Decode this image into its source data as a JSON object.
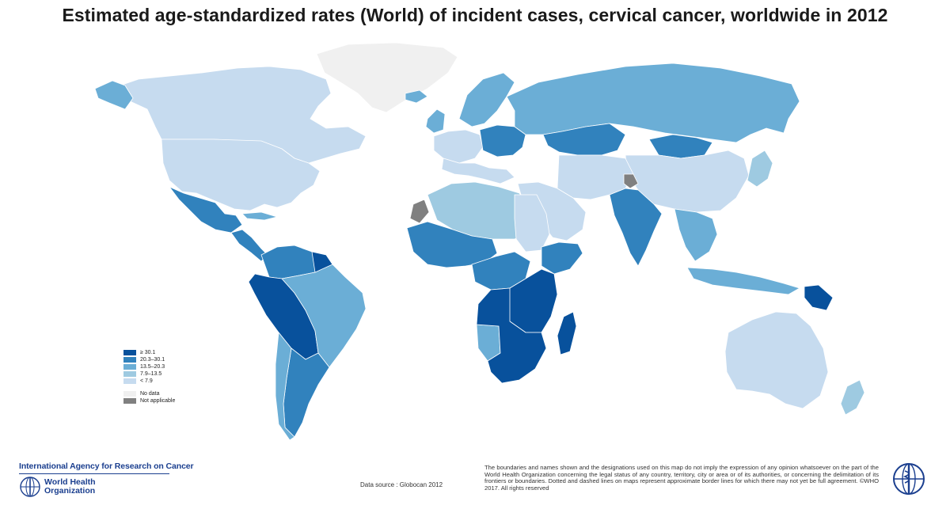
{
  "title": "Estimated age-standardized rates (World) of incident cases, cervical cancer, worldwide in 2012",
  "legend": {
    "classes": [
      {
        "label": "≥ 30.1",
        "color": "#08519c"
      },
      {
        "label": "20.3–30.1",
        "color": "#3182bd"
      },
      {
        "label": "13.5–20.3",
        "color": "#6baed6"
      },
      {
        "label": "7.9–13.5",
        "color": "#9ecae1"
      },
      {
        "label": "< 7.9",
        "color": "#c6dbef"
      }
    ],
    "no_data": {
      "label": "No data",
      "color": "#f0f0f0"
    },
    "not_applicable": {
      "label": "Not applicable",
      "color": "#808080"
    }
  },
  "footer": {
    "iarc": "International Agency for Research on Cancer",
    "who_line1": "World Health",
    "who_line2": "Organization",
    "source": "Data source : Globocan 2012",
    "disclaimer": "The boundaries and names shown and the designations used on this map do not imply the expression of any opinion whatsoever on the part of the World Health Organization concerning the legal status of any country, territory, city or area or of its authorities, or concerning the delimitation of its frontiers or boundaries. Dotted and dashed lines on maps represent approximate border lines for which there may not yet be full agreement. ©WHO 2017. All rights reserved"
  },
  "regions": [
    {
      "name": "greenland",
      "class": "no_data"
    },
    {
      "name": "canada",
      "class": 4
    },
    {
      "name": "alaska",
      "class": 2
    },
    {
      "name": "usa",
      "class": 4
    },
    {
      "name": "mexico",
      "class": 1
    },
    {
      "name": "central-america",
      "class": 1
    },
    {
      "name": "cuba",
      "class": 2
    },
    {
      "name": "colombia-venezuela",
      "class": 1
    },
    {
      "name": "guianas",
      "class": 0
    },
    {
      "name": "peru-bolivia-paraguay",
      "class": 0
    },
    {
      "name": "brazil",
      "class": 2
    },
    {
      "name": "chile",
      "class": 2
    },
    {
      "name": "argentina",
      "class": 1
    },
    {
      "name": "iceland",
      "class": 2
    },
    {
      "name": "uk-ireland",
      "class": 2
    },
    {
      "name": "scandinavia",
      "class": 2
    },
    {
      "name": "western-europe",
      "class": 4
    },
    {
      "name": "central-eastern-europe",
      "class": 1
    },
    {
      "name": "southern-europe",
      "class": 4
    },
    {
      "name": "russia",
      "class": 2
    },
    {
      "name": "kazakhstan",
      "class": 1
    },
    {
      "name": "mongolia",
      "class": 1
    },
    {
      "name": "china",
      "class": 4
    },
    {
      "name": "japan-korea",
      "class": 3
    },
    {
      "name": "middle-east",
      "class": 4
    },
    {
      "name": "iran-central-asia",
      "class": 4
    },
    {
      "name": "india",
      "class": 1
    },
    {
      "name": "kashmir",
      "class": "not_applicable"
    },
    {
      "name": "southeast-asia",
      "class": 2
    },
    {
      "name": "indonesia",
      "class": 2
    },
    {
      "name": "papua-new-guinea",
      "class": 0
    },
    {
      "name": "australia",
      "class": 4
    },
    {
      "name": "new-zealand",
      "class": 3
    },
    {
      "name": "western-sahara",
      "class": "not_applicable"
    },
    {
      "name": "north-africa",
      "class": 3
    },
    {
      "name": "west-africa",
      "class": 1
    },
    {
      "name": "central-africa",
      "class": 1
    },
    {
      "name": "east-africa",
      "class": 0
    },
    {
      "name": "southern-africa",
      "class": 0
    },
    {
      "name": "namibia",
      "class": 2
    },
    {
      "name": "madagascar",
      "class": 0
    },
    {
      "name": "horn-of-africa",
      "class": 1
    },
    {
      "name": "sudan-egypt",
      "class": 4
    }
  ]
}
